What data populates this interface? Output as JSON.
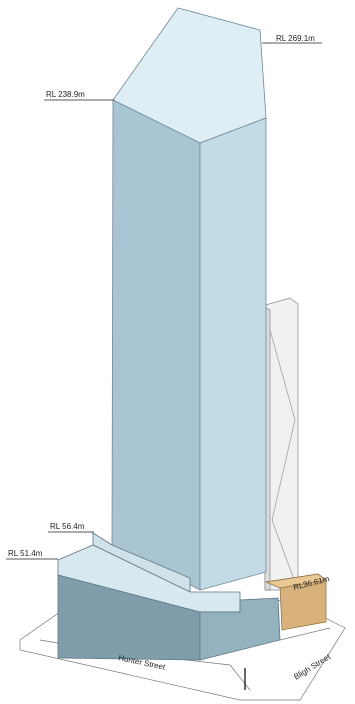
{
  "labels": {
    "top": "RL 269.1m",
    "tower_roof": "RL 238.9m",
    "podium_upper": "RL 56.4m",
    "podium_lower": "RL 51.4m",
    "neighbour": "RL36.61m"
  },
  "streets": {
    "hunter": "Hunter Street",
    "bligh": "Bligh Street"
  }
}
